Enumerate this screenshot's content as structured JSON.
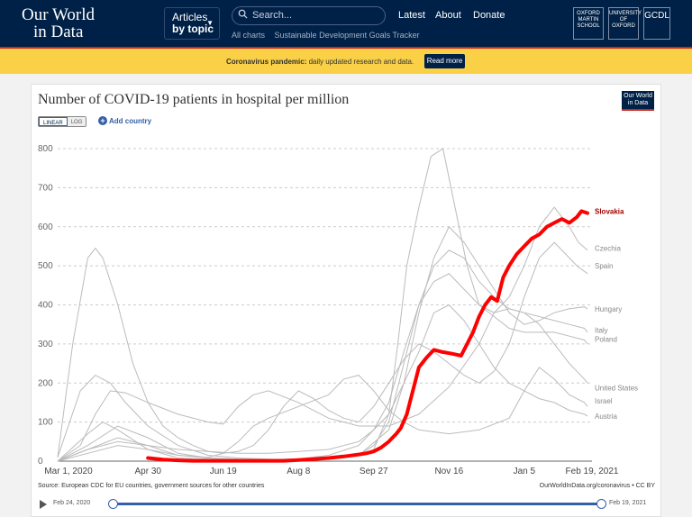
{
  "header": {
    "logo_line1": "Our World",
    "logo_line2": "in Data",
    "articles_label": "Articles",
    "by_topic_label": "by topic",
    "search_placeholder": "Search...",
    "sublinks": [
      "All charts",
      "Sustainable Development Goals Tracker"
    ],
    "nav": [
      "Latest",
      "About",
      "Donate"
    ],
    "partners": [
      "OXFORD MARTIN SCHOOL",
      "UNIVERSITY OF OXFORD",
      "GCDL"
    ]
  },
  "banner": {
    "bold_text": "Coronavirus pandemic:",
    "text": "daily updated research and data.",
    "button": "Read more"
  },
  "chart_card": {
    "badge": "Our World in Data",
    "linear_label": "LINEAR",
    "log_label": "LOG",
    "add_country_label": "Add country",
    "source": "Source: European CDC for EU countries, government sources for other countries",
    "attribution": "OurWorldInData.org/coronavirus • CC BY",
    "timeline_start": "Feb 24, 2020",
    "timeline_end": "Feb 19, 2021"
  },
  "colors": {
    "navy": "#002147",
    "accent_red": "#ce261e",
    "banner_yellow": "#f9d046",
    "highlight_series": "#ff0000",
    "background_series": "#bbbbbb",
    "link_blue": "#3360a9"
  },
  "chart_data": {
    "type": "line",
    "title": "Number of COVID-19 patients in hospital per million",
    "xlabel": "",
    "ylabel": "",
    "ylim": [
      0,
      800
    ],
    "yticks": [
      0,
      100,
      200,
      300,
      400,
      500,
      600,
      700,
      800
    ],
    "xlim_days": [
      0,
      355
    ],
    "xticks": [
      {
        "label": "Mar 1, 2020",
        "day": 0
      },
      {
        "label": "Apr 30",
        "day": 60
      },
      {
        "label": "Jun 19",
        "day": 110
      },
      {
        "label": "Aug 8",
        "day": 160
      },
      {
        "label": "Sep 27",
        "day": 210
      },
      {
        "label": "Nov 16",
        "day": 260
      },
      {
        "label": "Jan 5",
        "day": 310
      },
      {
        "label": "Feb 19, 2021",
        "day": 355
      }
    ],
    "highlight": "Slovakia",
    "series": [
      {
        "name": "Slovakia",
        "x": [
          60,
          70,
          80,
          90,
          100,
          110,
          120,
          130,
          140,
          150,
          160,
          170,
          180,
          190,
          200,
          205,
          210,
          215,
          220,
          225,
          228,
          232,
          236,
          240,
          245,
          250,
          255,
          262,
          268,
          272,
          276,
          280,
          284,
          288,
          292,
          296,
          300,
          305,
          310,
          315,
          320,
          325,
          330,
          335,
          340,
          345,
          348,
          352
        ],
        "values": [
          8,
          4,
          2,
          1,
          1,
          1,
          1,
          1,
          1,
          1,
          3,
          5,
          8,
          12,
          17,
          20,
          25,
          35,
          50,
          70,
          85,
          120,
          180,
          240,
          265,
          285,
          280,
          275,
          270,
          300,
          330,
          370,
          400,
          420,
          410,
          470,
          500,
          530,
          550,
          570,
          580,
          600,
          610,
          620,
          610,
          625,
          640,
          635
        ]
      },
      {
        "name": "Czechia",
        "x": [
          0,
          20,
          40,
          60,
          80,
          100,
          120,
          140,
          160,
          180,
          200,
          210,
          220,
          226,
          232,
          240,
          248,
          256,
          264,
          272,
          280,
          290,
          300,
          310,
          320,
          330,
          340,
          346,
          352
        ],
        "values": [
          0,
          40,
          90,
          60,
          20,
          8,
          5,
          4,
          4,
          6,
          15,
          30,
          120,
          300,
          500,
          650,
          780,
          800,
          650,
          500,
          400,
          380,
          420,
          500,
          600,
          650,
          600,
          560,
          540
        ]
      },
      {
        "name": "Spain",
        "x": [
          0,
          10,
          20,
          25,
          30,
          40,
          50,
          60,
          70,
          80,
          90,
          100,
          110,
          120,
          130,
          140,
          150,
          160,
          170,
          180,
          190,
          200,
          210,
          220,
          230,
          240,
          250,
          260,
          270,
          280,
          290,
          300,
          310,
          320,
          330,
          340,
          345,
          352
        ],
        "values": [
          10,
          300,
          520,
          545,
          520,
          400,
          250,
          150,
          90,
          60,
          40,
          25,
          20,
          25,
          40,
          80,
          140,
          180,
          160,
          130,
          110,
          100,
          140,
          200,
          260,
          300,
          280,
          250,
          220,
          200,
          230,
          300,
          420,
          520,
          560,
          520,
          500,
          480
        ]
      },
      {
        "name": "Hungary",
        "x": [
          0,
          20,
          40,
          60,
          80,
          100,
          120,
          140,
          160,
          180,
          200,
          220,
          230,
          240,
          250,
          260,
          270,
          280,
          290,
          300,
          310,
          320,
          330,
          340,
          350,
          352
        ],
        "values": [
          0,
          20,
          40,
          30,
          15,
          8,
          5,
          4,
          4,
          6,
          15,
          80,
          200,
          380,
          520,
          600,
          560,
          500,
          440,
          380,
          350,
          360,
          380,
          390,
          395,
          390
        ]
      },
      {
        "name": "Italy",
        "x": [
          0,
          15,
          25,
          35,
          45,
          60,
          80,
          100,
          120,
          140,
          160,
          180,
          200,
          210,
          220,
          230,
          240,
          250,
          260,
          270,
          280,
          290,
          300,
          310,
          320,
          330,
          340,
          350,
          352
        ],
        "values": [
          10,
          180,
          220,
          200,
          150,
          90,
          40,
          15,
          8,
          5,
          4,
          6,
          15,
          40,
          100,
          250,
          400,
          500,
          540,
          520,
          460,
          420,
          390,
          380,
          370,
          360,
          350,
          340,
          330
        ]
      },
      {
        "name": "Poland",
        "x": [
          0,
          20,
          40,
          60,
          80,
          100,
          120,
          140,
          160,
          180,
          200,
          210,
          220,
          230,
          240,
          250,
          260,
          270,
          280,
          290,
          300,
          310,
          320,
          330,
          340,
          350,
          352
        ],
        "values": [
          0,
          30,
          50,
          40,
          30,
          25,
          20,
          20,
          25,
          30,
          50,
          80,
          150,
          280,
          400,
          460,
          480,
          440,
          400,
          370,
          340,
          330,
          330,
          330,
          320,
          310,
          300
        ]
      },
      {
        "name": "United States",
        "x": [
          0,
          15,
          25,
          35,
          45,
          60,
          80,
          100,
          110,
          120,
          130,
          140,
          160,
          180,
          200,
          220,
          240,
          260,
          280,
          290,
          300,
          310,
          320,
          330,
          340,
          350,
          352
        ],
        "values": [
          0,
          40,
          120,
          180,
          175,
          150,
          120,
          100,
          95,
          140,
          170,
          180,
          150,
          110,
          90,
          90,
          120,
          190,
          300,
          380,
          390,
          380,
          350,
          300,
          250,
          210,
          200
        ]
      },
      {
        "name": "Israel",
        "x": [
          0,
          20,
          40,
          60,
          80,
          100,
          110,
          120,
          130,
          140,
          160,
          180,
          190,
          200,
          210,
          220,
          230,
          240,
          260,
          280,
          300,
          310,
          320,
          330,
          340,
          350,
          352
        ],
        "values": [
          0,
          30,
          60,
          40,
          15,
          10,
          20,
          50,
          90,
          110,
          140,
          170,
          210,
          220,
          180,
          130,
          100,
          80,
          70,
          80,
          110,
          180,
          240,
          210,
          170,
          150,
          140
        ]
      },
      {
        "name": "Austria",
        "x": [
          0,
          20,
          30,
          40,
          60,
          80,
          100,
          120,
          140,
          160,
          180,
          200,
          220,
          240,
          250,
          260,
          270,
          280,
          290,
          300,
          310,
          320,
          330,
          340,
          350,
          352
        ],
        "values": [
          0,
          70,
          100,
          80,
          30,
          8,
          5,
          4,
          4,
          6,
          15,
          40,
          120,
          280,
          380,
          400,
          360,
          300,
          240,
          200,
          180,
          160,
          150,
          130,
          120,
          115
        ]
      }
    ],
    "labels": [
      {
        "name": "Slovakia",
        "value": 640
      },
      {
        "name": "Czechia",
        "value": 545
      },
      {
        "name": "Spain",
        "value": 500
      },
      {
        "name": "Hungary",
        "value": 390
      },
      {
        "name": "Italy",
        "value": 335
      },
      {
        "name": "Poland",
        "value": 312
      },
      {
        "name": "United States",
        "value": 188
      },
      {
        "name": "Israel",
        "value": 155
      },
      {
        "name": "Austria",
        "value": 115
      }
    ]
  }
}
